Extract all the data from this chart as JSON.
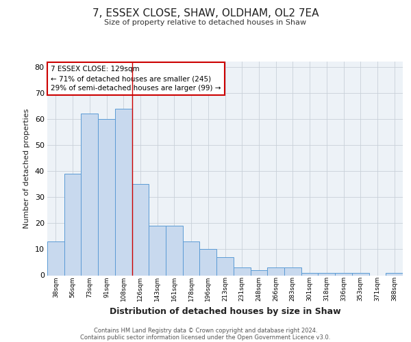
{
  "title": "7, ESSEX CLOSE, SHAW, OLDHAM, OL2 7EA",
  "subtitle": "Size of property relative to detached houses in Shaw",
  "xlabel": "Distribution of detached houses by size in Shaw",
  "ylabel": "Number of detached properties",
  "bar_labels": [
    "38sqm",
    "56sqm",
    "73sqm",
    "91sqm",
    "108sqm",
    "126sqm",
    "143sqm",
    "161sqm",
    "178sqm",
    "196sqm",
    "213sqm",
    "231sqm",
    "248sqm",
    "266sqm",
    "283sqm",
    "301sqm",
    "318sqm",
    "336sqm",
    "353sqm",
    "371sqm",
    "388sqm"
  ],
  "bar_values": [
    13,
    39,
    62,
    60,
    64,
    35,
    19,
    19,
    13,
    10,
    7,
    3,
    2,
    3,
    3,
    1,
    1,
    1,
    1,
    0,
    1
  ],
  "bar_color": "#c8d9ee",
  "bar_edge_color": "#5b9bd5",
  "annotation_line1": "7 ESSEX CLOSE: 129sqm",
  "annotation_line2": "← 71% of detached houses are smaller (245)",
  "annotation_line3": "29% of semi-detached houses are larger (99) →",
  "annotation_box_color": "#ffffff",
  "annotation_box_edge_color": "#cc0000",
  "property_line_color": "#cc0000",
  "ylim": [
    0,
    82
  ],
  "yticks": [
    0,
    10,
    20,
    30,
    40,
    50,
    60,
    70,
    80
  ],
  "grid_color": "#c8d0d8",
  "background_color": "#edf2f7",
  "footer_line1": "Contains HM Land Registry data © Crown copyright and database right 2024.",
  "footer_line2": "Contains public sector information licensed under the Open Government Licence v3.0."
}
